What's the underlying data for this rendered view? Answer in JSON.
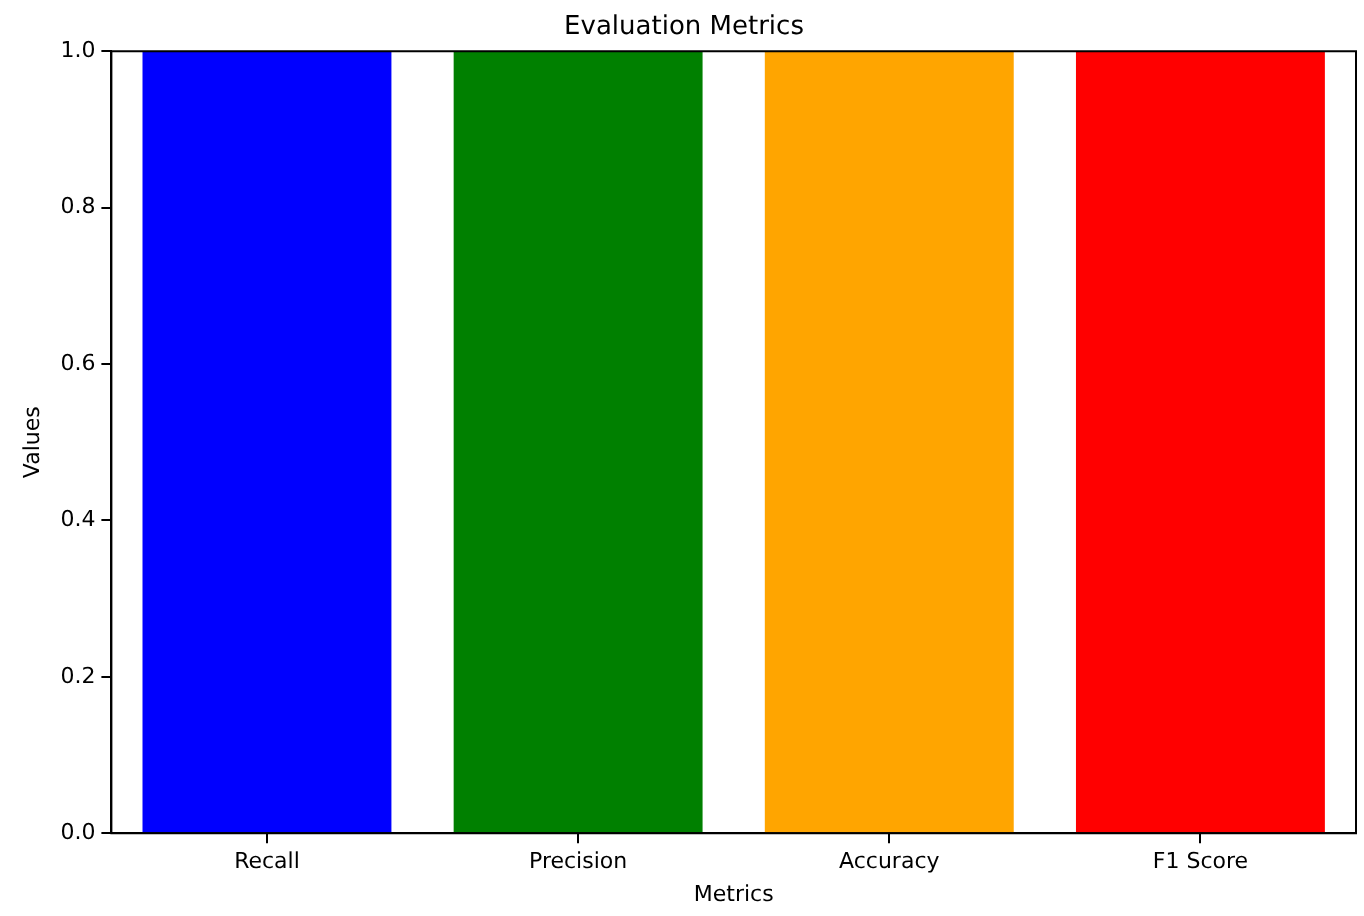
{
  "chart_data": {
    "type": "bar",
    "title": "Evaluation Metrics",
    "xlabel": "Metrics",
    "ylabel": "Values",
    "categories": [
      "Recall",
      "Precision",
      "Accuracy",
      "F1 Score"
    ],
    "values": [
      1.0,
      1.0,
      1.0,
      1.0
    ],
    "colors": [
      "#0000ff",
      "#008000",
      "#ffa500",
      "#ff0000"
    ],
    "ylim": [
      0,
      1.0
    ],
    "yticks": [
      {
        "value": 0,
        "label": "0.0"
      },
      {
        "value": 0.2,
        "label": "0.2"
      },
      {
        "value": 0.4,
        "label": "0.4"
      },
      {
        "value": 0.6,
        "label": "0.6"
      },
      {
        "value": 0.8,
        "label": "0.8"
      },
      {
        "value": 1.0,
        "label": "1.0"
      }
    ],
    "grid": false,
    "legend": false
  }
}
